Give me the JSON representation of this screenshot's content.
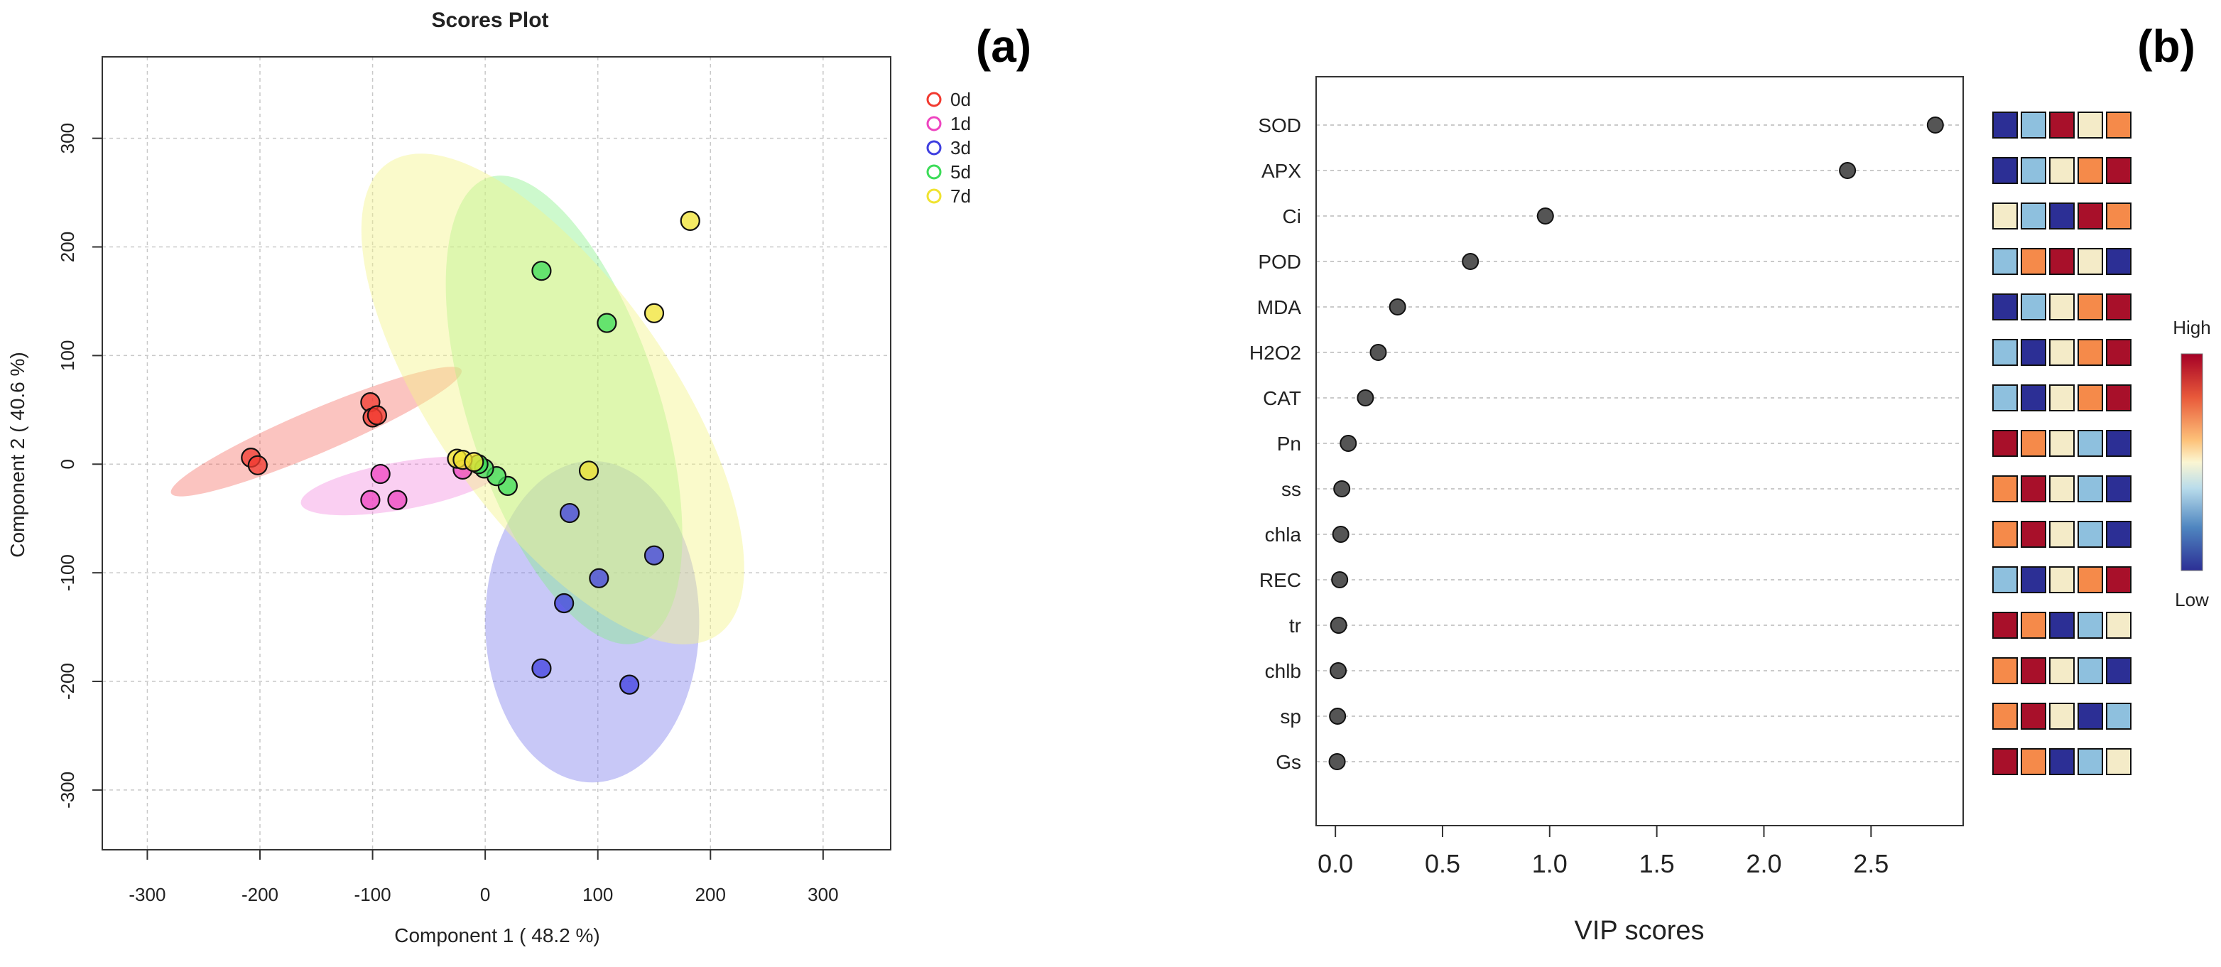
{
  "chart_data": [
    {
      "panel": "(a)",
      "type": "scatter",
      "title": "Scores Plot",
      "xlabel": "Component 1 ( 48.2 %)",
      "ylabel": "Component 2 ( 40.6 %)",
      "xlim": [
        -340,
        360
      ],
      "ylim": [
        -355,
        375
      ],
      "xticks": [
        -300,
        -200,
        -100,
        0,
        100,
        200,
        300
      ],
      "yticks": [
        -300,
        -200,
        -100,
        0,
        100,
        200,
        300
      ],
      "grid": true,
      "legend_position": "top-right",
      "series": [
        {
          "name": "0d",
          "color": "#f2392f",
          "fill": "rgba(245,100,90,0.38)",
          "ellipse": {
            "cx": -150,
            "cy": 30,
            "rx": 140,
            "ry": 20,
            "angle_deg": 23
          },
          "points": [
            [
              -208,
              6
            ],
            [
              -202,
              -1
            ],
            [
              -102,
              57
            ],
            [
              -100,
              43
            ],
            [
              -96,
              45
            ]
          ]
        },
        {
          "name": "1d",
          "color": "#ee44c0",
          "fill": "rgba(240,110,215,0.33)",
          "ellipse": {
            "cx": -75,
            "cy": -20,
            "rx": 90,
            "ry": 22,
            "angle_deg": 10
          },
          "points": [
            [
              -93,
              -9
            ],
            [
              -102,
              -33
            ],
            [
              -78,
              -33
            ],
            [
              -20,
              -5
            ]
          ]
        },
        {
          "name": "3d",
          "color": "#3f3fe0",
          "fill": "rgba(110,110,235,0.38)",
          "ellipse": {
            "cx": 95,
            "cy": -145,
            "rx": 95,
            "ry": 148,
            "angle_deg": 0
          },
          "points": [
            [
              75,
              -45
            ],
            [
              150,
              -84
            ],
            [
              101,
              -105
            ],
            [
              70,
              -128
            ],
            [
              50,
              -188
            ],
            [
              128,
              -203
            ]
          ]
        },
        {
          "name": "5d",
          "color": "#3cdc58",
          "fill": "rgba(130,240,130,0.4)",
          "ellipse": {
            "cx": 70,
            "cy": 50,
            "rx": 85,
            "ry": 225,
            "angle_deg": 18
          },
          "points": [
            [
              50,
              178
            ],
            [
              108,
              130
            ],
            [
              20,
              -20
            ],
            [
              10,
              -11
            ],
            [
              -1,
              -4
            ],
            [
              -6,
              0
            ]
          ]
        },
        {
          "name": "7d",
          "color": "#f0e330",
          "fill": "rgba(245,245,140,0.45)",
          "ellipse": {
            "cx": 60,
            "cy": 60,
            "rx": 105,
            "ry": 265,
            "angle_deg": 35
          },
          "points": [
            [
              182,
              224
            ],
            [
              150,
              139
            ],
            [
              92,
              -6
            ],
            [
              -25,
              5
            ],
            [
              -20,
              4
            ],
            [
              -10,
              2
            ]
          ]
        }
      ]
    },
    {
      "panel": "(b)",
      "type": "dot",
      "title": "",
      "xlabel": "VIP scores",
      "ylabel": "",
      "xlim": [
        -0.09,
        2.93
      ],
      "xticks": [
        "0.0",
        "0.5",
        "1.0",
        "1.5",
        "2.0",
        "2.5"
      ],
      "grid": true,
      "variables": [
        "SOD",
        "APX",
        "Ci",
        "POD",
        "MDA",
        "H2O2",
        "CAT",
        "Pn",
        "ss",
        "chla",
        "REC",
        "tr",
        "chlb",
        "sp",
        "Gs"
      ],
      "values": [
        2.8,
        2.39,
        0.98,
        0.63,
        0.29,
        0.2,
        0.14,
        0.06,
        0.03,
        0.025,
        0.02,
        0.015,
        0.013,
        0.01,
        0.008
      ],
      "heatmap_legend": {
        "high": "High",
        "low": "Low"
      },
      "heatmap_colors": [
        "#2c2f95",
        "#8ec0de",
        "#f4ebc8",
        "#f58a4a",
        "#a8102a"
      ],
      "heatmap": [
        [
          0,
          1,
          4,
          2,
          3
        ],
        [
          0,
          1,
          2,
          3,
          4
        ],
        [
          2,
          1,
          0,
          4,
          3
        ],
        [
          1,
          3,
          4,
          2,
          0
        ],
        [
          0,
          1,
          2,
          3,
          4
        ],
        [
          1,
          0,
          2,
          3,
          4
        ],
        [
          1,
          0,
          2,
          3,
          4
        ],
        [
          4,
          3,
          2,
          1,
          0
        ],
        [
          3,
          4,
          2,
          1,
          0
        ],
        [
          3,
          4,
          2,
          1,
          0
        ],
        [
          1,
          0,
          2,
          3,
          4
        ],
        [
          4,
          3,
          0,
          1,
          2
        ],
        [
          3,
          4,
          2,
          1,
          0
        ],
        [
          3,
          4,
          2,
          0,
          1
        ],
        [
          4,
          3,
          0,
          1,
          2
        ]
      ]
    }
  ]
}
